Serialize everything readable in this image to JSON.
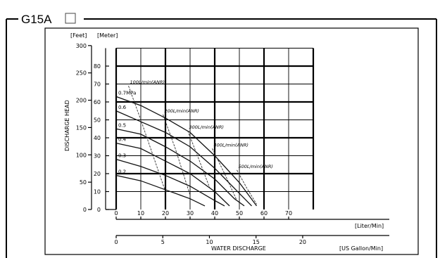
{
  "title": "G15A",
  "chart_data": {
    "type": "line",
    "ylabel": "DISCHARGE HEAD",
    "xlabel": "WATER DISCHARGE",
    "x_unit_primary": "[Liter/Min]",
    "x_unit_secondary": "[US Gallon/Min]",
    "y_unit_feet": "[Feet]",
    "y_unit_meter": "[Meter]",
    "xlim": [
      0,
      80
    ],
    "ylim_meter": [
      0,
      90
    ],
    "x_ticks": [
      "0",
      "10",
      "20",
      "30",
      "40",
      "50",
      "60",
      "70"
    ],
    "x2_ticks": [
      "0",
      "5",
      "10",
      "15",
      "20"
    ],
    "y_meter_ticks": [
      "0",
      "10",
      "20",
      "30",
      "40",
      "50",
      "60",
      "70",
      "80"
    ],
    "y_feet_ticks": [
      "0",
      "50",
      "100",
      "150",
      "200",
      "250",
      "300"
    ],
    "grid": true,
    "series": [
      {
        "name": "0.7MPa",
        "x": [
          0,
          10,
          20,
          30,
          40,
          50,
          57
        ],
        "y": [
          63,
          58,
          51,
          43,
          30,
          15,
          2
        ]
      },
      {
        "name": "0.6",
        "x": [
          0,
          10,
          20,
          30,
          40,
          50,
          55
        ],
        "y": [
          55,
          49,
          43,
          35,
          23,
          9,
          2
        ]
      },
      {
        "name": "0.5",
        "x": [
          0,
          10,
          20,
          30,
          40,
          48,
          52
        ],
        "y": [
          45,
          42,
          35,
          27,
          17,
          6,
          2
        ]
      },
      {
        "name": "0.4",
        "x": [
          0,
          10,
          20,
          30,
          40,
          46
        ],
        "y": [
          37,
          34,
          27,
          20,
          10,
          2
        ]
      },
      {
        "name": "0.3",
        "x": [
          0,
          10,
          20,
          30,
          40,
          44
        ],
        "y": [
          28,
          24,
          19,
          13,
          5,
          2
        ]
      },
      {
        "name": "0.2",
        "x": [
          0,
          10,
          20,
          30,
          36
        ],
        "y": [
          19,
          16,
          11,
          6,
          2
        ]
      }
    ],
    "flow_lines": [
      {
        "name": "100L/min(ANR)",
        "x": [
          5,
          10,
          15,
          20
        ],
        "y": [
          69,
          50,
          30,
          10
        ]
      },
      {
        "name": "200L/min(ANR)",
        "x": [
          19,
          24,
          30
        ],
        "y": [
          53,
          34,
          8
        ]
      },
      {
        "name": "300L/min(ANR)",
        "x": [
          29,
          33,
          38
        ],
        "y": [
          44,
          30,
          12
        ]
      },
      {
        "name": "400L/min(ANR)",
        "x": [
          39,
          44,
          49
        ],
        "y": [
          34,
          20,
          5
        ]
      },
      {
        "name": "500L/min(ANR)",
        "x": [
          49,
          53,
          57
        ],
        "y": [
          22,
          12,
          3
        ]
      }
    ]
  }
}
